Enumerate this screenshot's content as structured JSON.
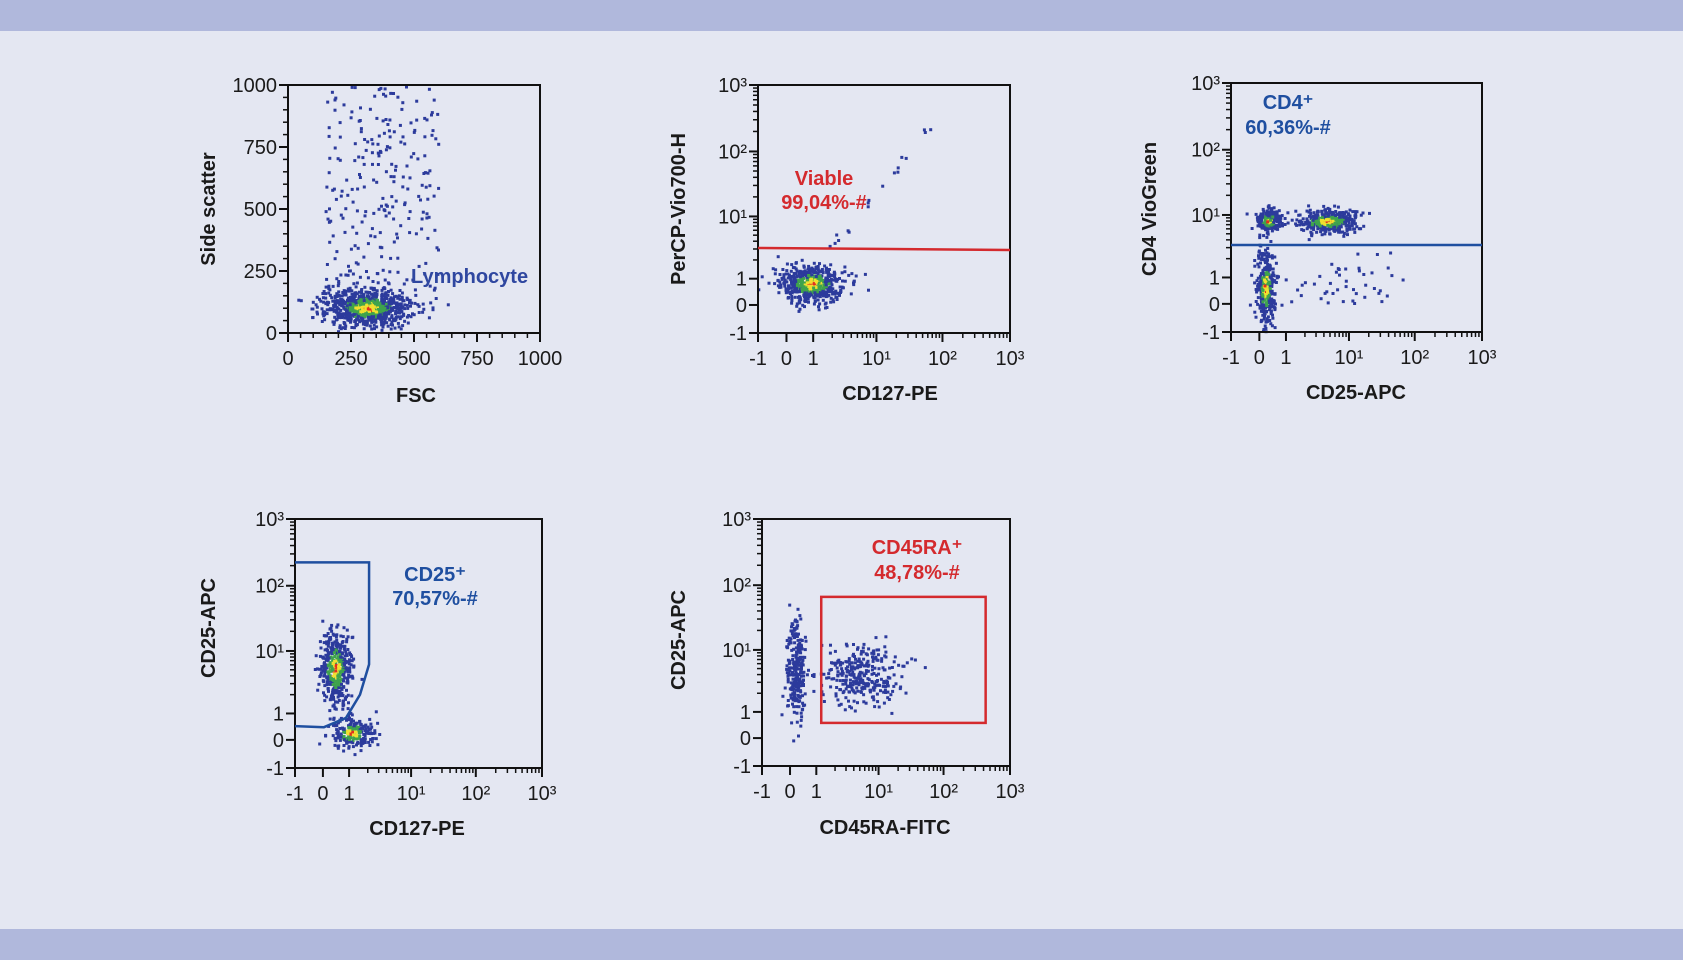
{
  "chart_data": [
    {
      "type": "scatter",
      "xlabel": "FSC",
      "ylabel": "Side scatter",
      "xscale": "linear",
      "yscale": "linear",
      "xlim": [
        0,
        1000
      ],
      "ylim": [
        0,
        1000
      ],
      "xticks": [
        0,
        250,
        500,
        750,
        1000
      ],
      "yticks": [
        0,
        250,
        500,
        750,
        1000
      ],
      "xtick_labels": [
        "0",
        "250",
        "500",
        "750",
        "1000"
      ],
      "ytick_labels": [
        "0",
        "250",
        "500",
        "750",
        "1000"
      ],
      "gate": {
        "type": "label-only",
        "name": "Lymphocyte",
        "percent": "",
        "color": "#2f47a0"
      },
      "populations": [
        {
          "x_range": [
            150,
            480
          ],
          "y_range": [
            30,
            170
          ],
          "count": 900
        },
        {
          "x_range": [
            150,
            600
          ],
          "y_range": [
            100,
            1000
          ],
          "count": 260,
          "uniform": true
        }
      ]
    },
    {
      "type": "scatter",
      "xlabel": "CD127-PE",
      "ylabel": "PerCP-Vio700-H",
      "xscale": "biexponential",
      "yscale": "biexponential",
      "xlim": [
        -1,
        1000
      ],
      "ylim": [
        -1,
        1000
      ],
      "xticks": [
        -1,
        0,
        1,
        10,
        100,
        1000
      ],
      "yticks": [
        -1,
        0,
        1,
        10,
        100,
        1000
      ],
      "xtick_labels": [
        "-1",
        "0",
        "1",
        "10¹",
        "10²",
        "10³"
      ],
      "ytick_labels": [
        "-1",
        "0",
        "1",
        "10¹",
        "10²",
        "10³"
      ],
      "gate": {
        "type": "horizontal-line",
        "y": 3,
        "name": "Viable",
        "percent": "99,04%-#",
        "color": "#d42a2e"
      },
      "populations": [
        {
          "x_range": [
            -0.2,
            3
          ],
          "y_range": [
            0.1,
            1.6
          ],
          "count": 550
        },
        {
          "x_range": [
            2,
            80
          ],
          "y_range": [
            3,
            300
          ],
          "count": 18,
          "diagonal": true
        }
      ]
    },
    {
      "type": "scatter",
      "xlabel": "CD25-APC",
      "ylabel": "CD4 VioGreen",
      "xscale": "biexponential",
      "yscale": "biexponential",
      "xlim": [
        -1,
        1000
      ],
      "ylim": [
        -1,
        1000
      ],
      "xticks": [
        -1,
        0,
        1,
        10,
        100,
        1000
      ],
      "yticks": [
        -1,
        0,
        1,
        10,
        100,
        1000
      ],
      "xtick_labels": [
        "-1",
        "0",
        "1",
        "10¹",
        "10²",
        "10³"
      ],
      "ytick_labels": [
        "-1",
        "0",
        "1",
        "10¹",
        "10²",
        "10³"
      ],
      "gate": {
        "type": "horizontal-line",
        "y": 3.3,
        "name": "CD4⁺",
        "percent": "60,36%-#",
        "color": "#1f4fa0"
      },
      "populations": [
        {
          "x_range": [
            -0.1,
            0.8
          ],
          "y_range": [
            5,
            12
          ],
          "count": 220
        },
        {
          "x_range": [
            1.5,
            14
          ],
          "y_range": [
            5,
            12
          ],
          "count": 380
        },
        {
          "x_range": [
            -0.1,
            0.6
          ],
          "y_range": [
            -0.7,
            2.5
          ],
          "count": 320
        },
        {
          "x_range": [
            1,
            80
          ],
          "y_range": [
            0,
            2.5
          ],
          "count": 45,
          "uniform": true
        }
      ]
    },
    {
      "type": "scatter",
      "xlabel": "CD127-PE",
      "ylabel": "CD25-APC",
      "xscale": "biexponential",
      "yscale": "biexponential",
      "xlim": [
        -1,
        1000
      ],
      "ylim": [
        -1,
        1000
      ],
      "xticks": [
        -1,
        0,
        1,
        10,
        100,
        1000
      ],
      "yticks": [
        -1,
        0,
        1,
        10,
        100,
        1000
      ],
      "xtick_labels": [
        "-1",
        "0",
        "1",
        "10¹",
        "10²",
        "10³"
      ],
      "ytick_labels": [
        "-1",
        "0",
        "1",
        "10¹",
        "10²",
        "10³"
      ],
      "gate": {
        "type": "polygon",
        "name": "CD25⁺",
        "percent": "70,57%-#",
        "color": "#1f4fa0",
        "points": [
          [
            -1,
            224
          ],
          [
            2.1,
            224
          ],
          [
            2.1,
            6.1
          ],
          [
            1.5,
            2
          ],
          [
            0.88,
            0.83
          ],
          [
            0.04,
            0.48
          ],
          [
            -1,
            0.52
          ]
        ]
      },
      "populations": [
        {
          "x_range": [
            -0.1,
            1.1
          ],
          "y_range": [
            1.3,
            20
          ],
          "count": 420
        },
        {
          "x_range": [
            0.3,
            2.5
          ],
          "y_range": [
            -0.3,
            0.8
          ],
          "count": 200
        }
      ]
    },
    {
      "type": "scatter",
      "xlabel": "CD45RA-FITC",
      "ylabel": "CD25-APC",
      "xscale": "biexponential",
      "yscale": "biexponential",
      "xlim": [
        -1,
        1000
      ],
      "ylim": [
        -1,
        1000
      ],
      "xticks": [
        -1,
        0,
        1,
        10,
        100,
        1000
      ],
      "yticks": [
        -1,
        0,
        1,
        10,
        100,
        1000
      ],
      "xtick_labels": [
        "-1",
        "0",
        "1",
        "10¹",
        "10²",
        "10³"
      ],
      "ytick_labels": [
        "-1",
        "0",
        "1",
        "10¹",
        "10²",
        "10³"
      ],
      "gate": {
        "type": "rectangle",
        "name": "CD45RA⁺",
        "percent": "48,78%-#",
        "color": "#d42a2e",
        "x": [
          1.2,
          430
        ],
        "y": [
          0.58,
          66
        ]
      },
      "populations": [
        {
          "x_range": [
            -0.1,
            0.6
          ],
          "y_range": [
            0.8,
            30
          ],
          "count": 260,
          "mono": true
        },
        {
          "x_range": [
            1.3,
            22
          ],
          "y_range": [
            1.3,
            12
          ],
          "count": 300,
          "mono": true
        }
      ]
    }
  ],
  "colors": {
    "background": "#e4e7f2",
    "band": "#b0b8dc",
    "event_low": "#2c3b9c",
    "event_mid": "#3fa34d",
    "event_high": "#f0e030",
    "event_peak": "#e03020"
  }
}
